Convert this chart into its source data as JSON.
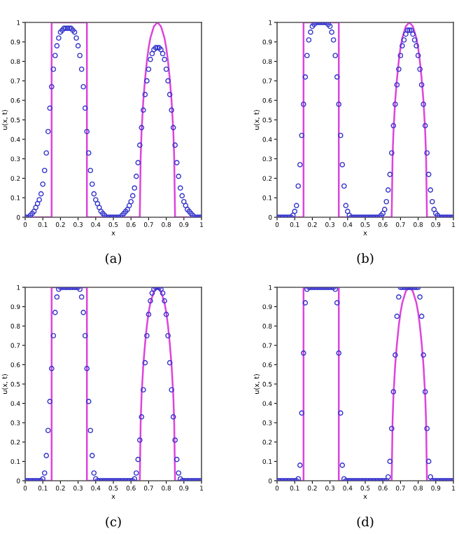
{
  "chart_data": [
    {
      "type": "scatter",
      "xlabel": "x",
      "ylabel": "u(x, t)",
      "annotations": [
        "(a)"
      ],
      "line_style": "solid",
      "grid": false,
      "legend": false,
      "xlim": [
        0,
        1
      ],
      "ylim": [
        0,
        1
      ],
      "xticks": [
        0,
        0.1,
        0.2,
        0.3,
        0.4,
        0.5,
        0.6,
        0.7,
        0.8,
        0.9,
        1
      ],
      "yticks": [
        0,
        0.1,
        0.2,
        0.3,
        0.4,
        0.5,
        0.6,
        0.7,
        0.8,
        0.9,
        1
      ],
      "x": [
        0,
        0.01,
        0.02,
        0.03,
        0.04,
        0.05,
        0.06,
        0.07,
        0.08,
        0.09,
        0.1,
        0.11,
        0.12,
        0.13,
        0.14,
        0.15,
        0.16,
        0.17,
        0.18,
        0.19,
        0.2,
        0.21,
        0.22,
        0.23,
        0.24,
        0.25,
        0.26,
        0.27,
        0.28,
        0.29,
        0.3,
        0.31,
        0.32,
        0.33,
        0.34,
        0.35,
        0.36,
        0.37,
        0.38,
        0.39,
        0.4,
        0.41,
        0.42,
        0.43,
        0.44,
        0.45,
        0.46,
        0.47,
        0.48,
        0.49,
        0.5,
        0.51,
        0.52,
        0.53,
        0.54,
        0.55,
        0.56,
        0.57,
        0.58,
        0.59,
        0.6,
        0.61,
        0.62,
        0.63,
        0.64,
        0.65,
        0.66,
        0.67,
        0.68,
        0.69,
        0.7,
        0.71,
        0.72,
        0.73,
        0.74,
        0.75,
        0.76,
        0.77,
        0.78,
        0.79,
        0.8,
        0.81,
        0.82,
        0.83,
        0.84,
        0.85,
        0.86,
        0.87,
        0.88,
        0.89,
        0.9,
        0.91,
        0.92,
        0.93,
        0.94,
        0.95,
        0.96,
        0.97,
        0.98,
        0.99,
        1
      ],
      "series": [
        {
          "type": "line",
          "color": "#dd44dd",
          "x": [
            0,
            0.15,
            0.15,
            0.35,
            0.35,
            0.65,
            0.655,
            0.66,
            0.67,
            0.68,
            0.69,
            0.7,
            0.71,
            0.72,
            0.73,
            0.74,
            0.75,
            0.76,
            0.77,
            0.78,
            0.79,
            0.8,
            0.81,
            0.82,
            0.83,
            0.84,
            0.845,
            0.85,
            1
          ],
          "values": [
            0,
            0,
            1,
            1,
            0,
            0,
            0.31,
            0.44,
            0.6,
            0.71,
            0.8,
            0.87,
            0.92,
            0.95,
            0.98,
            0.99,
            1,
            0.99,
            0.98,
            0.95,
            0.92,
            0.87,
            0.8,
            0.71,
            0.6,
            0.44,
            0.31,
            0,
            0
          ]
        },
        {
          "color": "#3333cc",
          "values": [
            0,
            0,
            0,
            0.01,
            0.02,
            0.03,
            0.05,
            0.07,
            0.09,
            0.12,
            0.17,
            0.24,
            0.33,
            0.44,
            0.56,
            0.67,
            0.76,
            0.83,
            0.88,
            0.92,
            0.95,
            0.96,
            0.97,
            0.97,
            0.97,
            0.97,
            0.97,
            0.96,
            0.95,
            0.92,
            0.88,
            0.83,
            0.76,
            0.67,
            0.56,
            0.44,
            0.33,
            0.24,
            0.17,
            0.12,
            0.09,
            0.07,
            0.05,
            0.03,
            0.02,
            0.01,
            0,
            0,
            0,
            0,
            0,
            0,
            0,
            0,
            0,
            0.01,
            0.02,
            0.03,
            0.04,
            0.06,
            0.08,
            0.11,
            0.15,
            0.21,
            0.28,
            0.37,
            0.46,
            0.55,
            0.63,
            0.7,
            0.76,
            0.81,
            0.84,
            0.86,
            0.87,
            0.87,
            0.87,
            0.86,
            0.84,
            0.81,
            0.76,
            0.7,
            0.63,
            0.55,
            0.46,
            0.37,
            0.28,
            0.21,
            0.15,
            0.11,
            0.08,
            0.06,
            0.04,
            0.03,
            0.02,
            0.01,
            0,
            0,
            0,
            0,
            0
          ]
        }
      ]
    },
    {
      "type": "scatter",
      "xlabel": "x",
      "ylabel": "u(x, t)",
      "annotations": [
        "(b)"
      ],
      "line_style": "solid",
      "grid": false,
      "legend": false,
      "xlim": [
        0,
        1
      ],
      "ylim": [
        0,
        1
      ],
      "xticks": [
        0,
        0.1,
        0.2,
        0.3,
        0.4,
        0.5,
        0.6,
        0.7,
        0.8,
        0.9,
        1
      ],
      "yticks": [
        0,
        0.1,
        0.2,
        0.3,
        0.4,
        0.5,
        0.6,
        0.7,
        0.8,
        0.9,
        1
      ],
      "x": [
        0,
        0.01,
        0.02,
        0.03,
        0.04,
        0.05,
        0.06,
        0.07,
        0.08,
        0.09,
        0.1,
        0.11,
        0.12,
        0.13,
        0.14,
        0.15,
        0.16,
        0.17,
        0.18,
        0.19,
        0.2,
        0.21,
        0.22,
        0.23,
        0.24,
        0.25,
        0.26,
        0.27,
        0.28,
        0.29,
        0.3,
        0.31,
        0.32,
        0.33,
        0.34,
        0.35,
        0.36,
        0.37,
        0.38,
        0.39,
        0.4,
        0.41,
        0.42,
        0.43,
        0.44,
        0.45,
        0.46,
        0.47,
        0.48,
        0.49,
        0.5,
        0.51,
        0.52,
        0.53,
        0.54,
        0.55,
        0.56,
        0.57,
        0.58,
        0.59,
        0.6,
        0.61,
        0.62,
        0.63,
        0.64,
        0.65,
        0.66,
        0.67,
        0.68,
        0.69,
        0.7,
        0.71,
        0.72,
        0.73,
        0.74,
        0.75,
        0.76,
        0.77,
        0.78,
        0.79,
        0.8,
        0.81,
        0.82,
        0.83,
        0.84,
        0.85,
        0.86,
        0.87,
        0.88,
        0.89,
        0.9,
        0.91,
        0.92,
        0.93,
        0.94,
        0.95,
        0.96,
        0.97,
        0.98,
        0.99,
        1
      ],
      "series": [
        {
          "type": "line",
          "color": "#dd44dd",
          "x": [
            0,
            0.15,
            0.15,
            0.35,
            0.35,
            0.65,
            0.655,
            0.66,
            0.67,
            0.68,
            0.69,
            0.7,
            0.71,
            0.72,
            0.73,
            0.74,
            0.75,
            0.76,
            0.77,
            0.78,
            0.79,
            0.8,
            0.81,
            0.82,
            0.83,
            0.84,
            0.845,
            0.85,
            1
          ],
          "values": [
            0,
            0,
            1,
            1,
            0,
            0,
            0.31,
            0.44,
            0.6,
            0.71,
            0.8,
            0.87,
            0.92,
            0.95,
            0.98,
            0.99,
            1,
            0.99,
            0.98,
            0.95,
            0.92,
            0.87,
            0.8,
            0.71,
            0.6,
            0.44,
            0.31,
            0,
            0
          ]
        },
        {
          "color": "#3333cc",
          "values": [
            0,
            0,
            0,
            0,
            0,
            0,
            0,
            0,
            0,
            0.01,
            0.03,
            0.06,
            0.16,
            0.27,
            0.42,
            0.58,
            0.72,
            0.83,
            0.91,
            0.95,
            0.98,
            0.99,
            1,
            1,
            1,
            1,
            1,
            1,
            1,
            0.99,
            0.98,
            0.95,
            0.91,
            0.83,
            0.72,
            0.58,
            0.42,
            0.27,
            0.16,
            0.06,
            0.03,
            0.01,
            0,
            0,
            0,
            0,
            0,
            0,
            0,
            0,
            0,
            0,
            0,
            0,
            0,
            0,
            0,
            0,
            0,
            0.01,
            0.02,
            0.04,
            0.08,
            0.14,
            0.22,
            0.33,
            0.47,
            0.58,
            0.68,
            0.76,
            0.83,
            0.88,
            0.91,
            0.94,
            0.96,
            0.96,
            0.96,
            0.94,
            0.91,
            0.88,
            0.83,
            0.76,
            0.68,
            0.58,
            0.47,
            0.33,
            0.22,
            0.14,
            0.08,
            0.04,
            0.02,
            0.01,
            0,
            0,
            0,
            0,
            0,
            0,
            0,
            0,
            0
          ]
        }
      ]
    },
    {
      "type": "scatter",
      "xlabel": "x",
      "ylabel": "u(x, t)",
      "annotations": [
        "(c)"
      ],
      "line_style": "solid",
      "grid": false,
      "legend": false,
      "xlim": [
        0,
        1
      ],
      "ylim": [
        0,
        1
      ],
      "xticks": [
        0,
        0.1,
        0.2,
        0.3,
        0.4,
        0.5,
        0.6,
        0.7,
        0.8,
        0.9,
        1
      ],
      "yticks": [
        0,
        0.1,
        0.2,
        0.3,
        0.4,
        0.5,
        0.6,
        0.7,
        0.8,
        0.9,
        1
      ],
      "x": [
        0,
        0.01,
        0.02,
        0.03,
        0.04,
        0.05,
        0.06,
        0.07,
        0.08,
        0.09,
        0.1,
        0.11,
        0.12,
        0.13,
        0.14,
        0.15,
        0.16,
        0.17,
        0.18,
        0.19,
        0.2,
        0.21,
        0.22,
        0.23,
        0.24,
        0.25,
        0.26,
        0.27,
        0.28,
        0.29,
        0.3,
        0.31,
        0.32,
        0.33,
        0.34,
        0.35,
        0.36,
        0.37,
        0.38,
        0.39,
        0.4,
        0.41,
        0.42,
        0.43,
        0.44,
        0.45,
        0.46,
        0.47,
        0.48,
        0.49,
        0.5,
        0.51,
        0.52,
        0.53,
        0.54,
        0.55,
        0.56,
        0.57,
        0.58,
        0.59,
        0.6,
        0.61,
        0.62,
        0.63,
        0.64,
        0.65,
        0.66,
        0.67,
        0.68,
        0.69,
        0.7,
        0.71,
        0.72,
        0.73,
        0.74,
        0.75,
        0.76,
        0.77,
        0.78,
        0.79,
        0.8,
        0.81,
        0.82,
        0.83,
        0.84,
        0.85,
        0.86,
        0.87,
        0.88,
        0.89,
        0.9,
        0.91,
        0.92,
        0.93,
        0.94,
        0.95,
        0.96,
        0.97,
        0.98,
        0.99,
        1
      ],
      "series": [
        {
          "type": "line",
          "color": "#dd44dd",
          "x": [
            0,
            0.15,
            0.15,
            0.35,
            0.35,
            0.65,
            0.655,
            0.66,
            0.67,
            0.68,
            0.69,
            0.7,
            0.71,
            0.72,
            0.73,
            0.74,
            0.75,
            0.76,
            0.77,
            0.78,
            0.79,
            0.8,
            0.81,
            0.82,
            0.83,
            0.84,
            0.845,
            0.85,
            1
          ],
          "values": [
            0,
            0,
            1,
            1,
            0,
            0,
            0.31,
            0.44,
            0.6,
            0.71,
            0.8,
            0.87,
            0.92,
            0.95,
            0.98,
            0.99,
            1,
            0.99,
            0.98,
            0.95,
            0.92,
            0.87,
            0.8,
            0.71,
            0.6,
            0.44,
            0.31,
            0,
            0
          ]
        },
        {
          "color": "#3333cc",
          "values": [
            0,
            0,
            0,
            0,
            0,
            0,
            0,
            0,
            0,
            0,
            0.01,
            0.04,
            0.13,
            0.26,
            0.41,
            0.58,
            0.75,
            0.87,
            0.95,
            0.99,
            1,
            1,
            1,
            1,
            1,
            1,
            1,
            1,
            1,
            1,
            1,
            0.99,
            0.95,
            0.87,
            0.75,
            0.58,
            0.41,
            0.26,
            0.13,
            0.04,
            0.01,
            0,
            0,
            0,
            0,
            0,
            0,
            0,
            0,
            0,
            0,
            0,
            0,
            0,
            0,
            0,
            0,
            0,
            0,
            0,
            0,
            0,
            0.01,
            0.04,
            0.11,
            0.21,
            0.33,
            0.47,
            0.61,
            0.75,
            0.86,
            0.93,
            0.97,
            0.99,
            1,
            1,
            1,
            0.99,
            0.97,
            0.93,
            0.86,
            0.75,
            0.61,
            0.47,
            0.33,
            0.21,
            0.11,
            0.04,
            0.01,
            0,
            0,
            0,
            0,
            0,
            0,
            0,
            0,
            0,
            0,
            0,
            0
          ]
        }
      ]
    },
    {
      "type": "scatter",
      "xlabel": "x",
      "ylabel": "u(x, t)",
      "annotations": [
        "(d)"
      ],
      "line_style": "solid",
      "grid": false,
      "legend": false,
      "xlim": [
        0,
        1
      ],
      "ylim": [
        0,
        1
      ],
      "xticks": [
        0,
        0.1,
        0.2,
        0.3,
        0.4,
        0.5,
        0.6,
        0.7,
        0.8,
        0.9,
        1
      ],
      "yticks": [
        0,
        0.1,
        0.2,
        0.3,
        0.4,
        0.5,
        0.6,
        0.7,
        0.8,
        0.9,
        1
      ],
      "x": [
        0,
        0.01,
        0.02,
        0.03,
        0.04,
        0.05,
        0.06,
        0.07,
        0.08,
        0.09,
        0.1,
        0.11,
        0.12,
        0.13,
        0.14,
        0.15,
        0.16,
        0.17,
        0.18,
        0.19,
        0.2,
        0.21,
        0.22,
        0.23,
        0.24,
        0.25,
        0.26,
        0.27,
        0.28,
        0.29,
        0.3,
        0.31,
        0.32,
        0.33,
        0.34,
        0.35,
        0.36,
        0.37,
        0.38,
        0.39,
        0.4,
        0.41,
        0.42,
        0.43,
        0.44,
        0.45,
        0.46,
        0.47,
        0.48,
        0.49,
        0.5,
        0.51,
        0.52,
        0.53,
        0.54,
        0.55,
        0.56,
        0.57,
        0.58,
        0.59,
        0.6,
        0.61,
        0.62,
        0.63,
        0.64,
        0.65,
        0.66,
        0.67,
        0.68,
        0.69,
        0.7,
        0.71,
        0.72,
        0.73,
        0.74,
        0.75,
        0.76,
        0.77,
        0.78,
        0.79,
        0.8,
        0.81,
        0.82,
        0.83,
        0.84,
        0.85,
        0.86,
        0.87,
        0.88,
        0.89,
        0.9,
        0.91,
        0.92,
        0.93,
        0.94,
        0.95,
        0.96,
        0.97,
        0.98,
        0.99,
        1
      ],
      "series": [
        {
          "type": "line",
          "color": "#dd44dd",
          "x": [
            0,
            0.15,
            0.15,
            0.35,
            0.35,
            0.65,
            0.655,
            0.66,
            0.67,
            0.68,
            0.69,
            0.7,
            0.71,
            0.72,
            0.73,
            0.74,
            0.75,
            0.76,
            0.77,
            0.78,
            0.79,
            0.8,
            0.81,
            0.82,
            0.83,
            0.84,
            0.845,
            0.85,
            1
          ],
          "values": [
            0,
            0,
            1,
            1,
            0,
            0,
            0.31,
            0.44,
            0.6,
            0.71,
            0.8,
            0.87,
            0.92,
            0.95,
            0.98,
            0.99,
            1,
            0.99,
            0.98,
            0.95,
            0.92,
            0.87,
            0.8,
            0.71,
            0.6,
            0.44,
            0.31,
            0,
            0
          ]
        },
        {
          "color": "#3333cc",
          "values": [
            0,
            0,
            0,
            0,
            0,
            0,
            0,
            0,
            0,
            0,
            0,
            0,
            0.01,
            0.08,
            0.35,
            0.66,
            0.92,
            0.99,
            1,
            1,
            1,
            1,
            1,
            1,
            1,
            1,
            1,
            1,
            1,
            1,
            1,
            1,
            1,
            0.99,
            0.92,
            0.66,
            0.35,
            0.08,
            0.01,
            0,
            0,
            0,
            0,
            0,
            0,
            0,
            0,
            0,
            0,
            0,
            0,
            0,
            0,
            0,
            0,
            0,
            0,
            0,
            0,
            0,
            0,
            0,
            0,
            0.02,
            0.1,
            0.27,
            0.46,
            0.65,
            0.85,
            0.95,
            1,
            1,
            1,
            1,
            1,
            1,
            1,
            1,
            1,
            1,
            1,
            0.95,
            0.85,
            0.65,
            0.46,
            0.27,
            0.1,
            0.02,
            0,
            0,
            0,
            0,
            0,
            0,
            0,
            0,
            0,
            0,
            0,
            0,
            0
          ]
        }
      ]
    }
  ]
}
